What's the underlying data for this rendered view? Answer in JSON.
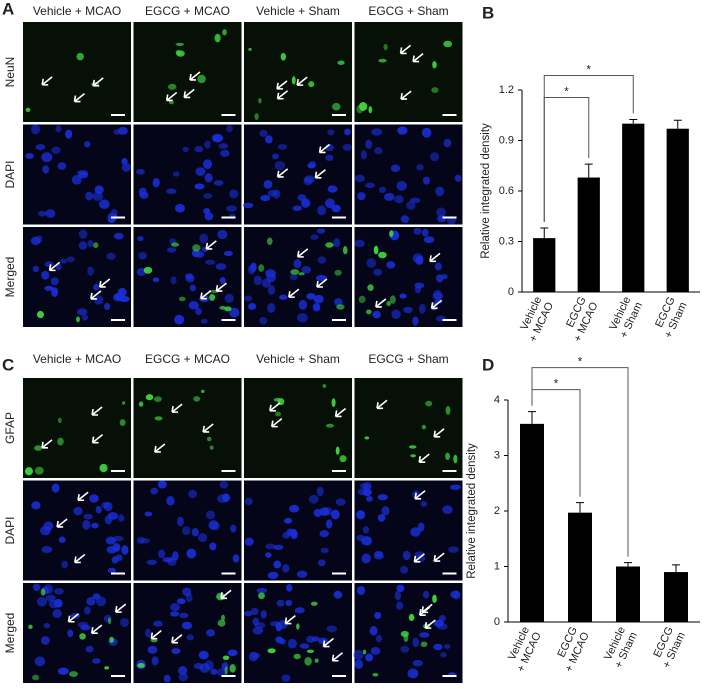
{
  "panel_labels": [
    "A",
    "B",
    "C",
    "D"
  ],
  "micrographs": [
    {
      "columns": [
        "Vehicle + MCAO",
        "EGCG + MCAO",
        "Vehicle + Sham",
        "EGCG + Sham"
      ],
      "rows": [
        "NeuN",
        "DAPI",
        "Merged"
      ]
    },
    {
      "columns": [
        "Vehicle + MCAO",
        "EGCG + MCAO",
        "Vehicle + Sham",
        "EGCG + Sham"
      ],
      "rows": [
        "GFAP",
        "DAPI",
        "Merged"
      ]
    }
  ],
  "chart_data": [
    {
      "type": "bar",
      "y_label": "Relative integrated density",
      "categories": [
        [
          "Vehicle",
          "+ MCAO"
        ],
        [
          "EGCG",
          "+ MCAO"
        ],
        [
          "Vehicle",
          "+ Sham"
        ],
        [
          "EGCG",
          "+ Sham"
        ]
      ],
      "values": [
        0.32,
        0.68,
        1.0,
        0.97
      ],
      "errors": [
        0.06,
        0.08,
        0.025,
        0.05
      ],
      "color": "#000000",
      "ylim": [
        0,
        1.2
      ],
      "yticks": [
        0,
        0.3,
        0.6,
        0.9,
        1.2
      ],
      "significance": {
        "label": "*",
        "pairs": [
          [
            0,
            1
          ],
          [
            0,
            2
          ]
        ]
      }
    },
    {
      "type": "bar",
      "y_label": "Relative integrated density",
      "categories": [
        [
          "Vehicle",
          "+ MCAO"
        ],
        [
          "EGCG",
          "+ MCAO"
        ],
        [
          "Vehicle",
          "+ Sham"
        ],
        [
          "EGCG",
          "+ Sham"
        ]
      ],
      "values": [
        3.57,
        1.97,
        1.0,
        0.9
      ],
      "errors": [
        0.22,
        0.18,
        0.07,
        0.13
      ],
      "color": "#000000",
      "ylim": [
        0,
        4
      ],
      "yticks": [
        0,
        1,
        2,
        3,
        4
      ],
      "significance": {
        "label": "*",
        "pairs": [
          [
            0,
            1
          ],
          [
            0,
            2
          ]
        ]
      }
    }
  ]
}
